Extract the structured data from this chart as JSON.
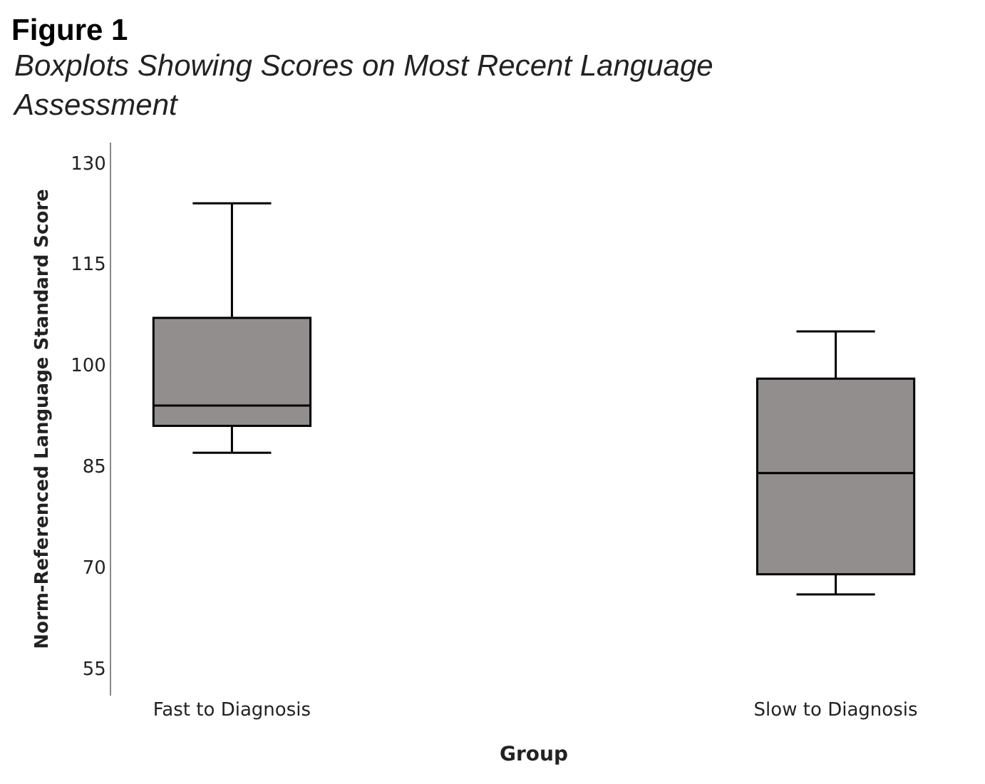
{
  "chart_data": {
    "type": "box",
    "title": "Figure 1",
    "subtitle": "Boxplots Showing Scores on Most Recent Language Assessment",
    "xlabel": "Group",
    "ylabel": "Norm-Referenced Language Standard Score",
    "categories": [
      "Fast to Diagnosis",
      "Slow to Diagnosis"
    ],
    "boxes": [
      {
        "low": 87,
        "q1": 91,
        "median": 94,
        "q3": 107,
        "high": 124
      },
      {
        "low": 66,
        "q1": 69,
        "median": 84,
        "q3": 98,
        "high": 105
      }
    ],
    "color": "#918e8d",
    "ylim": [
      51,
      133
    ],
    "yticks": [
      55,
      70,
      85,
      100,
      115,
      130
    ]
  }
}
